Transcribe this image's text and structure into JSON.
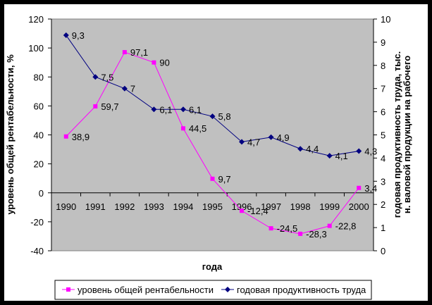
{
  "chart_data": {
    "type": "line",
    "categories": [
      "1990",
      "1991",
      "1992",
      "1993",
      "1994",
      "1995",
      "1996",
      "1997",
      "1998",
      "1999",
      "2000"
    ],
    "xlabel": "года",
    "ylabel_left": "уровень общей рентабельности, %",
    "ylabel_right_line1": "годовая продуктивность труда, тыс.",
    "ylabel_right_line2": "н. валовой продукции на рабочего",
    "ylim_left": [
      -40,
      120
    ],
    "yticks_left": [
      "-40",
      "-20",
      "0",
      "20",
      "40",
      "60",
      "80",
      "100",
      "120"
    ],
    "ylim_right": [
      0,
      10
    ],
    "yticks_right": [
      "0",
      "1",
      "2",
      "3",
      "4",
      "5",
      "6",
      "7",
      "8",
      "9",
      "10"
    ],
    "legend_position": "bottom",
    "series": [
      {
        "name": "уровень общей рентабельности",
        "axis": "left",
        "color": "#ff00ff",
        "marker": "square",
        "values": [
          38.9,
          59.7,
          97.1,
          90,
          44.5,
          9.7,
          -12.4,
          -24.5,
          -28.3,
          -22.8,
          3.4
        ],
        "labels": [
          "38,9",
          "59,7",
          "97,1",
          "90",
          "44,5",
          "9,7",
          "-12,4",
          "-24,5",
          "-28,3",
          "-22,8",
          "3,4"
        ]
      },
      {
        "name": "годовая продуктивность труда",
        "axis": "right",
        "color": "#000080",
        "marker": "diamond",
        "values": [
          9.3,
          7.5,
          7,
          6.1,
          6.1,
          5.8,
          4.7,
          4.9,
          4.4,
          4.1,
          4.3
        ],
        "labels": [
          "9,3",
          "7,5",
          "7",
          "6,1",
          "6,1",
          "5,8",
          "4,7",
          "4,9",
          "4,4",
          "4,1",
          "4,3"
        ]
      }
    ],
    "plot_background": "#c0c0c0"
  }
}
